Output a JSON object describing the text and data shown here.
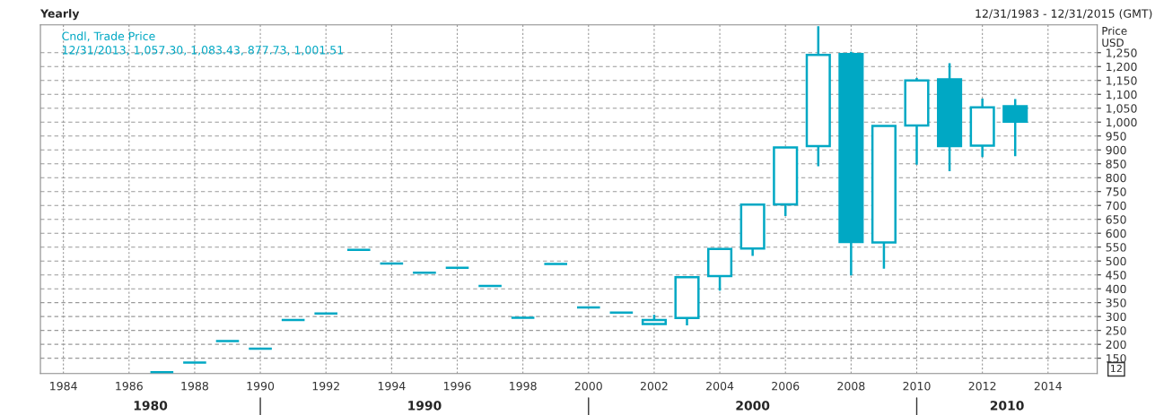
{
  "chart_data": {
    "type": "candlestick",
    "title": "Yearly",
    "subtitle": "12/31/1983 - 12/31/2015 (GMT)",
    "ylabel": "Price\nUSD",
    "annotations": [
      "Cndl, Trade Price",
      "12/31/2013, 1,057.30, 1,083.43, 877.73, 1,001.51",
      "12",
      "1980",
      "1990",
      "2000",
      "2010"
    ],
    "x": [
      1987,
      1988,
      1989,
      1990,
      1991,
      1992,
      1993,
      1994,
      1995,
      1996,
      1997,
      1998,
      1999,
      2000,
      2001,
      2002,
      2003,
      2004,
      2005,
      2006,
      2007,
      2008,
      2009,
      2010,
      2011,
      2012,
      2013
    ],
    "color": "#00a8c4",
    "ohlc": [
      [
        100,
        100,
        100,
        100
      ],
      [
        134,
        134,
        134,
        134
      ],
      [
        212,
        212,
        212,
        212
      ],
      [
        184,
        184,
        184,
        184
      ],
      [
        288,
        288,
        288,
        288
      ],
      [
        311,
        311,
        311,
        311
      ],
      [
        540,
        540,
        540,
        540
      ],
      [
        491,
        491,
        491,
        491
      ],
      [
        458,
        458,
        458,
        458
      ],
      [
        476,
        476,
        476,
        476
      ],
      [
        410,
        410,
        410,
        410
      ],
      [
        296,
        296,
        296,
        296
      ],
      [
        489,
        489,
        489,
        489
      ],
      [
        333,
        333,
        333,
        333
      ],
      [
        314,
        314,
        314,
        314
      ],
      [
        273,
        306,
        273,
        288
      ],
      [
        295,
        442,
        268,
        442
      ],
      [
        446,
        543,
        393,
        543
      ],
      [
        545,
        706,
        518,
        703
      ],
      [
        704,
        909,
        662,
        909
      ],
      [
        914,
        1345,
        841,
        1242
      ],
      [
        1245,
        1253,
        448,
        568
      ],
      [
        567,
        988,
        472,
        986
      ],
      [
        988,
        1159,
        847,
        1150
      ],
      [
        1154,
        1212,
        823,
        914
      ],
      [
        915,
        1085,
        874,
        1053
      ],
      [
        1057.3,
        1083.43,
        877.73,
        1001.51
      ]
    ],
    "xlim": [
      1983.3,
      2015.5
    ],
    "xticks": [
      1984,
      1986,
      1988,
      1990,
      1992,
      1994,
      1996,
      1998,
      2000,
      2002,
      2004,
      2006,
      2008,
      2010,
      2012,
      2014
    ],
    "ylim": [
      95,
      1350
    ],
    "yticks": [
      {
        "value": 150,
        "label": "150"
      },
      {
        "value": 200,
        "label": "200"
      },
      {
        "value": 250,
        "label": "250"
      },
      {
        "value": 300,
        "label": "300"
      },
      {
        "value": 350,
        "label": "350"
      },
      {
        "value": 400,
        "label": "400"
      },
      {
        "value": 450,
        "label": "450"
      },
      {
        "value": 500,
        "label": "500"
      },
      {
        "value": 550,
        "label": "550"
      },
      {
        "value": 600,
        "label": "600"
      },
      {
        "value": 650,
        "label": "650"
      },
      {
        "value": 700,
        "label": "700"
      },
      {
        "value": 750,
        "label": "750"
      },
      {
        "value": 800,
        "label": "800"
      },
      {
        "value": 850,
        "label": "850"
      },
      {
        "value": 900,
        "label": "900"
      },
      {
        "value": 950,
        "label": "950"
      },
      {
        "value": 1000,
        "label": "1,000"
      },
      {
        "value": 1050,
        "label": "1,050"
      },
      {
        "value": 1100,
        "label": "1,100"
      },
      {
        "value": 1150,
        "label": "1,150"
      },
      {
        "value": 1200,
        "label": "1,200"
      },
      {
        "value": 1250,
        "label": "1,250"
      }
    ],
    "grid": true
  }
}
